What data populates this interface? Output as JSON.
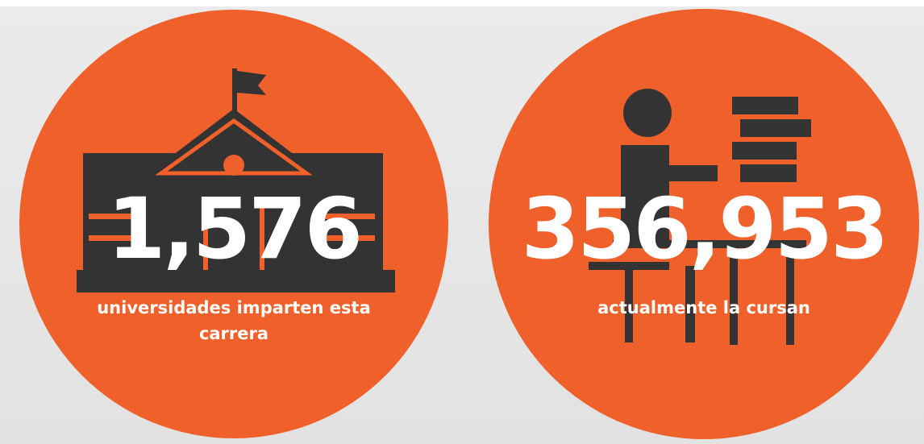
{
  "stats": [
    {
      "number": "1,576",
      "label": "universidades imparten esta carrera"
    },
    {
      "number": "356,953",
      "label": "actualmente la cursan"
    }
  ]
}
